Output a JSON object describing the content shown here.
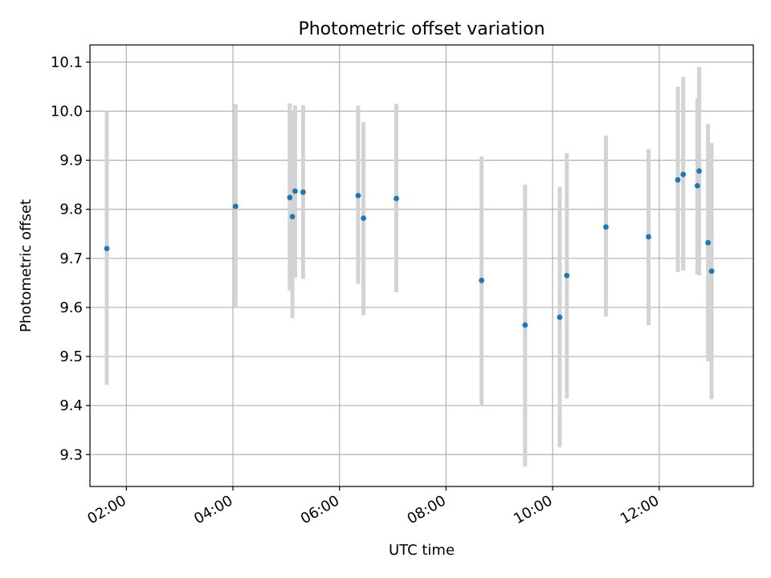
{
  "chart_data": {
    "type": "scatter",
    "title": "Photometric offset variation",
    "xlabel": "UTC time",
    "ylabel": "Photometric offset",
    "xlim": [
      "01:19",
      "13:46"
    ],
    "ylim": [
      9.235,
      10.135
    ],
    "x_ticks": [
      "02:00",
      "04:00",
      "06:00",
      "08:00",
      "10:00",
      "12:00"
    ],
    "y_ticks": [
      "9.3",
      "9.4",
      "9.5",
      "9.6",
      "9.7",
      "9.8",
      "9.9",
      "10.0",
      "10.1"
    ],
    "grid": true,
    "colors": {
      "point": "#1f77b4",
      "error_bar": "#d3d3d3",
      "grid": "#b0b0b0"
    },
    "series": [
      {
        "error_bars": "vertical",
        "points": [
          {
            "x": "01:38",
            "y": 9.72,
            "y_low": 9.442,
            "y_high": 10.0
          },
          {
            "x": "04:03",
            "y": 9.806,
            "y_low": 9.6,
            "y_high": 10.014
          },
          {
            "x": "05:04",
            "y": 9.824,
            "y_low": 9.634,
            "y_high": 10.016
          },
          {
            "x": "05:07",
            "y": 9.785,
            "y_low": 9.578,
            "y_high": 10.0
          },
          {
            "x": "05:10",
            "y": 9.837,
            "y_low": 9.66,
            "y_high": 10.012
          },
          {
            "x": "05:19",
            "y": 9.835,
            "y_low": 9.658,
            "y_high": 10.012
          },
          {
            "x": "06:21",
            "y": 9.828,
            "y_low": 9.648,
            "y_high": 10.011
          },
          {
            "x": "06:27",
            "y": 9.782,
            "y_low": 9.584,
            "y_high": 9.978
          },
          {
            "x": "07:04",
            "y": 9.822,
            "y_low": 9.631,
            "y_high": 10.015
          },
          {
            "x": "08:40",
            "y": 9.655,
            "y_low": 9.4,
            "y_high": 9.908
          },
          {
            "x": "09:29",
            "y": 9.564,
            "y_low": 9.276,
            "y_high": 9.85
          },
          {
            "x": "10:08",
            "y": 9.58,
            "y_low": 9.315,
            "y_high": 9.846
          },
          {
            "x": "10:16",
            "y": 9.665,
            "y_low": 9.414,
            "y_high": 9.914
          },
          {
            "x": "11:00",
            "y": 9.764,
            "y_low": 9.581,
            "y_high": 9.95
          },
          {
            "x": "11:48",
            "y": 9.744,
            "y_low": 9.564,
            "y_high": 9.923
          },
          {
            "x": "12:21",
            "y": 9.86,
            "y_low": 9.672,
            "y_high": 10.05
          },
          {
            "x": "12:27",
            "y": 9.871,
            "y_low": 9.675,
            "y_high": 10.07
          },
          {
            "x": "12:43",
            "y": 9.848,
            "y_low": 9.668,
            "y_high": 10.027
          },
          {
            "x": "12:45",
            "y": 9.878,
            "y_low": 9.665,
            "y_high": 10.09
          },
          {
            "x": "12:55",
            "y": 9.732,
            "y_low": 9.49,
            "y_high": 9.974
          },
          {
            "x": "12:59",
            "y": 9.674,
            "y_low": 9.413,
            "y_high": 9.935
          }
        ]
      }
    ]
  }
}
